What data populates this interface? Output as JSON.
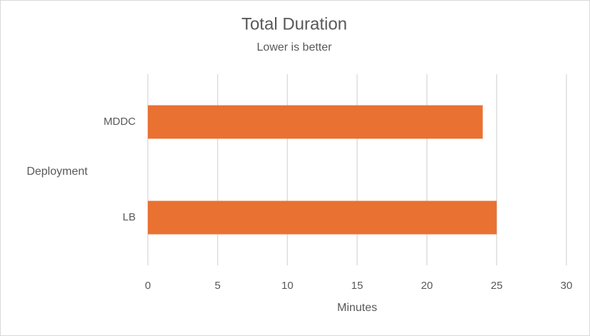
{
  "chart_data": {
    "type": "hbar",
    "title": "Total Duration",
    "subtitle": "Lower is better",
    "x_label": "Minutes",
    "y_label": "Deployment",
    "categories": [
      "MDDC",
      "LB"
    ],
    "values": [
      24,
      25
    ],
    "color": "#e97132",
    "xlim": [
      0,
      30
    ],
    "xticks": [
      0,
      5,
      10,
      15,
      20,
      25,
      30
    ],
    "grid": true
  }
}
